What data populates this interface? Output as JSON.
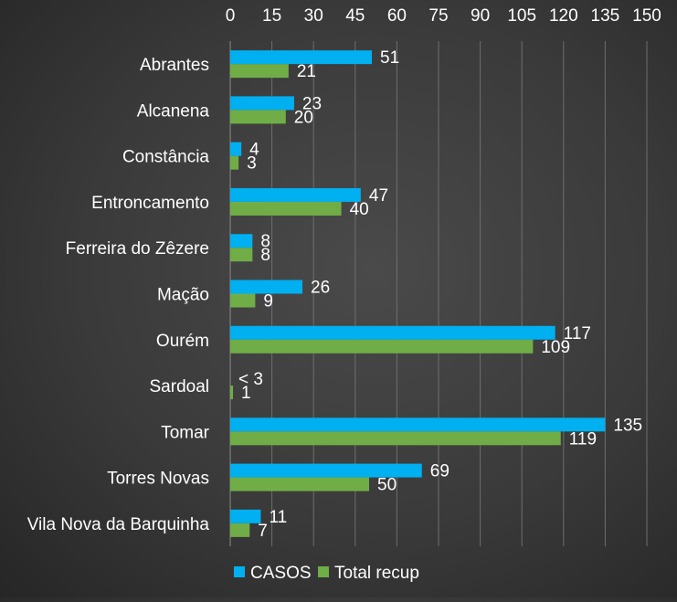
{
  "chart_data": {
    "type": "bar",
    "orientation": "horizontal",
    "categories": [
      "Abrantes",
      "Alcanena",
      "Constância",
      "Entroncamento",
      "Ferreira do Zêzere",
      "Mação",
      "Ourém",
      "Sardoal",
      "Tomar",
      "Torres Novas",
      "Vila Nova da Barquinha"
    ],
    "series": [
      {
        "name": "CASOS",
        "color": "#00B0F0",
        "values": [
          51,
          23,
          4,
          47,
          8,
          26,
          117,
          null,
          135,
          69,
          11
        ],
        "labels": [
          "51",
          "23",
          "4",
          "47",
          "8",
          "26",
          "117",
          "< 3",
          "135",
          "69",
          "11"
        ]
      },
      {
        "name": "Total recup",
        "color": "#70AD47",
        "values": [
          21,
          20,
          3,
          40,
          8,
          9,
          109,
          1,
          119,
          50,
          7
        ],
        "labels": [
          "21",
          "20",
          "3",
          "40",
          "8",
          "9",
          "109",
          "1",
          "119",
          "50",
          "7"
        ]
      }
    ],
    "x_ticks": [
      "0",
      "15",
      "30",
      "45",
      "60",
      "75",
      "90",
      "105",
      "120",
      "135",
      "150"
    ],
    "xlim": [
      0,
      150
    ],
    "x_axis_position": "top",
    "grid": true,
    "legend_position": "bottom-left",
    "title": "",
    "xlabel": "",
    "ylabel": ""
  }
}
